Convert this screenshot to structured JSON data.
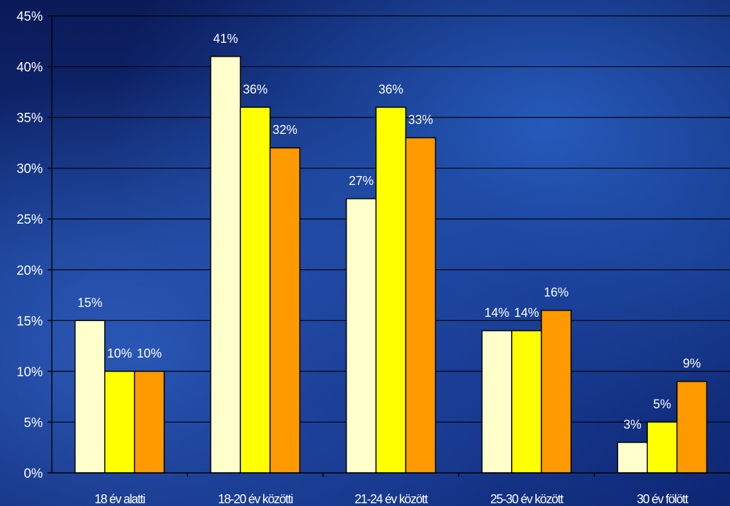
{
  "chart_data": {
    "type": "bar",
    "categories": [
      "18 év alatti",
      "18-20 év közötti",
      "21-24 év között",
      "25-30 év között",
      "30 év fölött"
    ],
    "series": [
      {
        "values": [
          15,
          41,
          27,
          14,
          3
        ],
        "color": "#FFFFCC"
      },
      {
        "values": [
          10,
          36,
          36,
          14,
          5
        ],
        "color": "#FFFF00"
      },
      {
        "values": [
          10,
          32,
          33,
          16,
          9
        ],
        "color": "#FF9900"
      }
    ],
    "ylim": [
      0,
      45
    ],
    "yticks": [
      0,
      5,
      10,
      15,
      20,
      25,
      30,
      35,
      40,
      45
    ],
    "ytick_labels": [
      "0%",
      "5%",
      "10%",
      "15%",
      "20%",
      "25%",
      "30%",
      "35%",
      "40%",
      "45%"
    ],
    "data_labels": [
      [
        "15%",
        "41%",
        "27%",
        "14%",
        "3%"
      ],
      [
        "10%",
        "36%",
        "36%",
        "14%",
        "5%"
      ],
      [
        "10%",
        "32%",
        "33%",
        "16%",
        "9%"
      ]
    ],
    "grid": true,
    "legend": "none",
    "background": "blue-tinted concert crowd photo"
  }
}
